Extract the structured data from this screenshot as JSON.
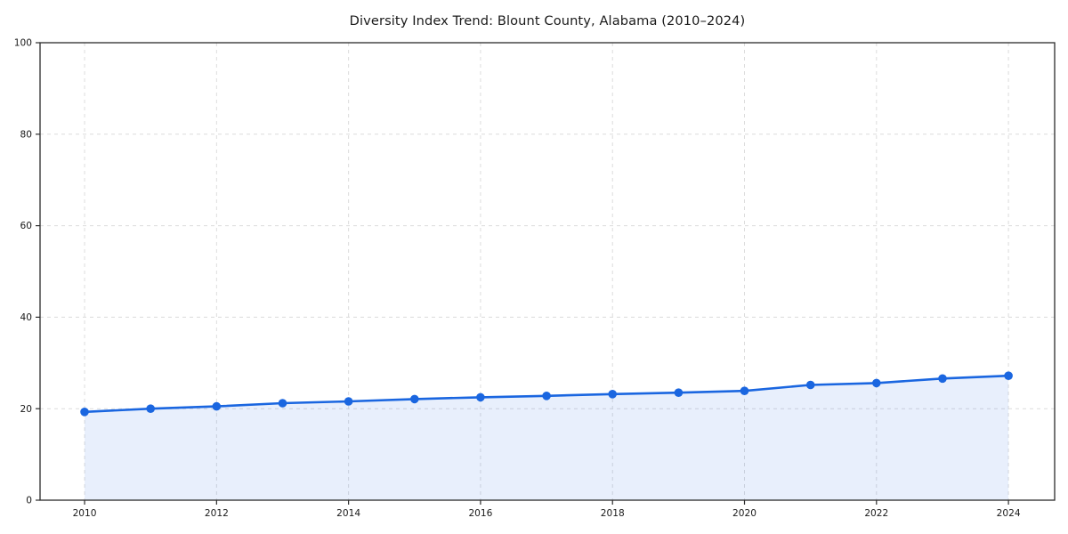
{
  "figure": {
    "background": "#ffffff"
  },
  "chart_data": {
    "type": "area",
    "title": "Diversity Index Trend: Blount County, Alabama (2010–2024)",
    "xlabel": "",
    "ylabel": "",
    "x": [
      2010,
      2011,
      2012,
      2013,
      2014,
      2015,
      2016,
      2017,
      2018,
      2019,
      2020,
      2021,
      2022,
      2023,
      2024
    ],
    "series": [
      {
        "name": "Diversity Index",
        "values": [
          19.3,
          20.0,
          20.5,
          21.2,
          21.6,
          22.1,
          22.5,
          22.8,
          23.2,
          23.5,
          23.9,
          25.2,
          25.6,
          26.6,
          27.2
        ]
      }
    ],
    "xlim": [
      2009.325,
      2024.7
    ],
    "ylim": [
      0,
      100
    ],
    "xticks": [
      2010,
      2012,
      2014,
      2016,
      2018,
      2020,
      2022,
      2024
    ],
    "yticks": [
      0,
      20,
      40,
      60,
      80,
      100
    ],
    "grid": true,
    "grid_style": "dashed",
    "legend": false,
    "colors": {
      "line": "#1a66e0",
      "marker": "#1a66e0",
      "fill": "#1a66e0",
      "fill_opacity": 0.1,
      "grid": "#dcdcdc",
      "spine": "#2b2b2b",
      "tick_label": "#1a1a1a",
      "title": "#1a1a1a"
    }
  }
}
